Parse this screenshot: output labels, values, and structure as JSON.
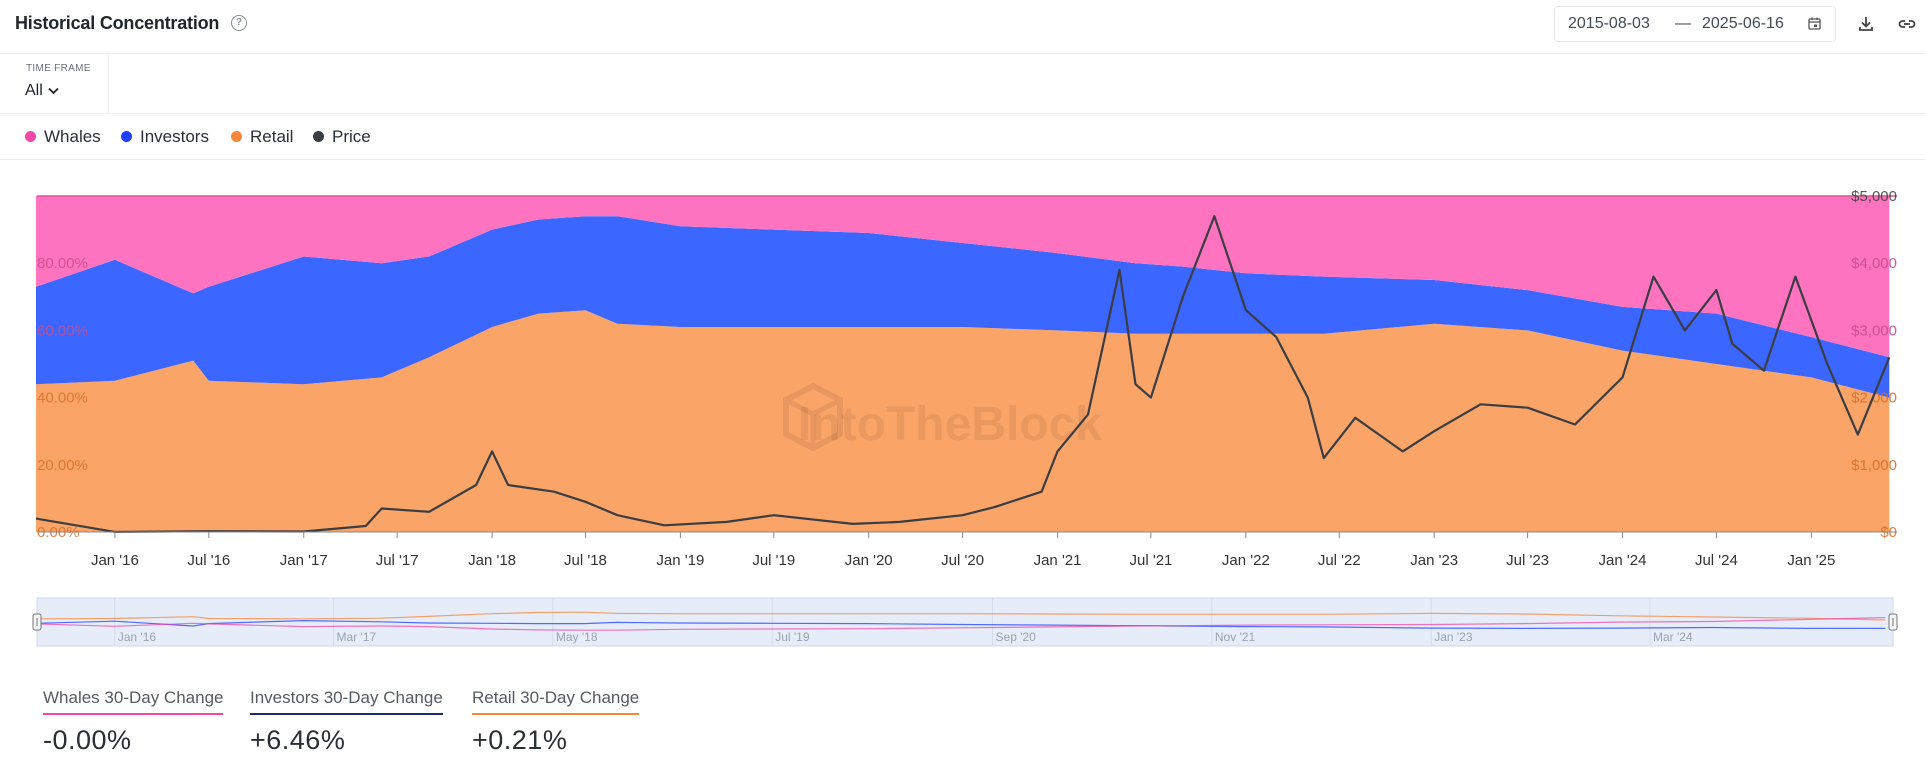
{
  "header": {
    "title": "Historical Concentration",
    "help_icon": "question-circle-icon",
    "date_start": "2015-08-03",
    "date_separator": "—",
    "date_end": "2025-06-16",
    "calendar_icon": "calendar-icon",
    "download_icon": "download-icon",
    "link_icon": "link-icon"
  },
  "timeframe": {
    "label": "TIME FRAME",
    "value": "All",
    "icon": "chevron-down-icon"
  },
  "legend": [
    {
      "name": "Whales",
      "color": "#f048a8"
    },
    {
      "name": "Investors",
      "color": "#1e40ff"
    },
    {
      "name": "Retail",
      "color": "#f5863a"
    },
    {
      "name": "Price",
      "color": "#3a3d42"
    }
  ],
  "watermark": "IntoTheBlock",
  "chart_data": {
    "type": "area",
    "stacked": true,
    "x_ticks": [
      "Jan '16",
      "Jul '16",
      "Jan '17",
      "Jul '17",
      "Jan '18",
      "Jul '18",
      "Jan '19",
      "Jul '19",
      "Jan '20",
      "Jul '20",
      "Jan '21",
      "Jul '21",
      "Jan '22",
      "Jul '22",
      "Jan '23",
      "Jul '23",
      "Jan '24",
      "Jul '24",
      "Jan '25"
    ],
    "y_left_ticks": [
      "0.00%",
      "20.00%",
      "40.00%",
      "60.00%",
      "80.00%"
    ],
    "y_left_range": [
      0,
      100
    ],
    "y_right_ticks": [
      "$0",
      "$1,000",
      "$2,000",
      "$3,000",
      "$4,000",
      "$5,000"
    ],
    "y_right_range": [
      0,
      5000
    ],
    "x_range": [
      "2015-08-03",
      "2025-06-16"
    ],
    "series": [
      {
        "name": "Retail",
        "color": "#fba468",
        "x": [
          "2015-08",
          "2016-01",
          "2016-06",
          "2016-07",
          "2017-01",
          "2017-06",
          "2017-09",
          "2018-01",
          "2018-04",
          "2018-07",
          "2018-09",
          "2019-01",
          "2019-07",
          "2020-01",
          "2020-07",
          "2021-01",
          "2021-06",
          "2021-09",
          "2022-01",
          "2022-06",
          "2023-01",
          "2023-07",
          "2024-01",
          "2024-07",
          "2025-01",
          "2025-06"
        ],
        "values": [
          44,
          45,
          51,
          45,
          44,
          46,
          52,
          61,
          65,
          66,
          62,
          61,
          61,
          61,
          61,
          60,
          59,
          59,
          59,
          59,
          62,
          60,
          54,
          50,
          46,
          40
        ]
      },
      {
        "name": "Investors",
        "color": "#3b66ff",
        "x": [
          "2015-08",
          "2016-01",
          "2016-06",
          "2016-07",
          "2017-01",
          "2017-06",
          "2017-09",
          "2018-01",
          "2018-04",
          "2018-07",
          "2018-09",
          "2019-01",
          "2019-07",
          "2020-01",
          "2020-07",
          "2021-01",
          "2021-06",
          "2021-09",
          "2022-01",
          "2022-06",
          "2023-01",
          "2023-07",
          "2024-01",
          "2024-07",
          "2025-01",
          "2025-06"
        ],
        "values": [
          29,
          36,
          20,
          28,
          38,
          34,
          30,
          29,
          28,
          28,
          32,
          30,
          29,
          28,
          25,
          23,
          21,
          20,
          18,
          17,
          13,
          12,
          13,
          15,
          12,
          12
        ]
      },
      {
        "name": "Whales",
        "color": "#fd73c0",
        "x": [
          "2015-08",
          "2016-01",
          "2016-06",
          "2016-07",
          "2017-01",
          "2017-06",
          "2017-09",
          "2018-01",
          "2018-04",
          "2018-07",
          "2018-09",
          "2019-01",
          "2019-07",
          "2020-01",
          "2020-07",
          "2021-01",
          "2021-06",
          "2021-09",
          "2022-01",
          "2022-06",
          "2023-01",
          "2023-07",
          "2024-01",
          "2024-07",
          "2025-01",
          "2025-06"
        ],
        "values": [
          27,
          19,
          29,
          27,
          18,
          20,
          18,
          10,
          7,
          6,
          6,
          9,
          10,
          11,
          14,
          17,
          20,
          21,
          23,
          24,
          25,
          28,
          33,
          35,
          42,
          48
        ]
      },
      {
        "name": "Price",
        "color": "#3a3d42",
        "axis": "right",
        "x": [
          "2015-08",
          "2016-01",
          "2016-07",
          "2017-01",
          "2017-05",
          "2017-06",
          "2017-09",
          "2017-12",
          "2018-01",
          "2018-02",
          "2018-05",
          "2018-07",
          "2018-09",
          "2018-12",
          "2019-04",
          "2019-07",
          "2019-12",
          "2020-03",
          "2020-07",
          "2020-09",
          "2020-12",
          "2021-01",
          "2021-03",
          "2021-05",
          "2021-06",
          "2021-07",
          "2021-09",
          "2021-11",
          "2022-01",
          "2022-03",
          "2022-05",
          "2022-06",
          "2022-08",
          "2022-11",
          "2023-01",
          "2023-04",
          "2023-07",
          "2023-10",
          "2024-01",
          "2024-03",
          "2024-05",
          "2024-07",
          "2024-08",
          "2024-10",
          "2024-12",
          "2025-02",
          "2025-04",
          "2025-06"
        ],
        "values": [
          200,
          1,
          12,
          8,
          90,
          350,
          300,
          700,
          1200,
          700,
          600,
          450,
          250,
          100,
          150,
          250,
          120,
          150,
          250,
          370,
          600,
          1200,
          1750,
          3900,
          2200,
          2000,
          3500,
          4700,
          3300,
          2900,
          2000,
          1100,
          1700,
          1200,
          1500,
          1900,
          1850,
          1600,
          2300,
          3800,
          3000,
          3600,
          2800,
          2400,
          3800,
          2500,
          1450,
          2600
        ]
      }
    ]
  },
  "navigator": {
    "x_labels": [
      "Jan '16",
      "Mar '17",
      "May '18",
      "Jul '19",
      "Sep '20",
      "Nov '21",
      "Jan '23",
      "Mar '24"
    ],
    "series_colors": [
      "#f5863a",
      "#1e40ff",
      "#f048a8"
    ]
  },
  "stats": [
    {
      "label": "Whales 30-Day Change",
      "value": "-0.00%",
      "color": "#f048a8"
    },
    {
      "label": "Investors 30-Day Change",
      "value": "+6.46%",
      "color": "#1f2a78"
    },
    {
      "label": "Retail 30-Day Change",
      "value": "+0.21%",
      "color": "#f5863a"
    }
  ]
}
